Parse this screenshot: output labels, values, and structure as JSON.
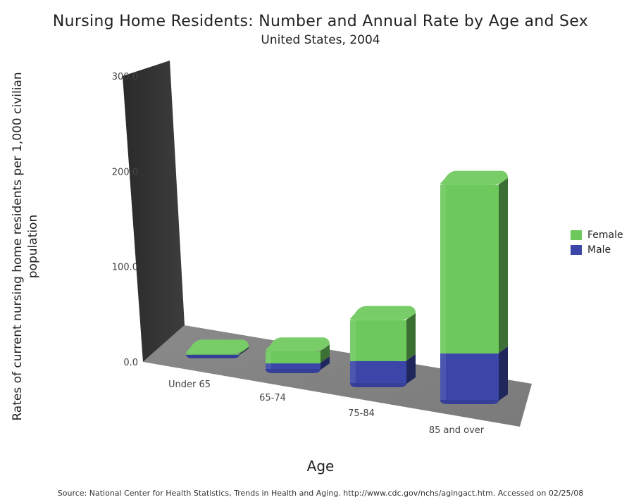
{
  "chart_data": {
    "type": "bar",
    "stacked": true,
    "title": "Nursing Home Residents: Number and Annual Rate by Age and Sex",
    "subtitle": "United States, 2004",
    "xlabel": "Age",
    "ylabel": "Rates of current nursing home residents per 1,000 civilian population",
    "categories": [
      "Under 65",
      "65-74",
      "75-84",
      "85 and over"
    ],
    "series": [
      {
        "name": "Male",
        "color": "#3b46a8",
        "values": [
          0.9,
          7.3,
          24.5,
          50.2
        ]
      },
      {
        "name": "Female",
        "color": "#6dc95c",
        "values": [
          1.0,
          12.5,
          43.0,
          177.0
        ]
      }
    ],
    "ylim": [
      0,
      300
    ],
    "yticks": [
      "0.0",
      "100.0",
      "200.0",
      "300.0"
    ],
    "ytick_values": [
      0,
      100,
      200,
      300
    ],
    "legend_position": "right",
    "grid": false
  },
  "source": "Source: National Center for Health Statistics, Trends in Health and Aging. http://www.cdc.gov/nchs/agingact.htm. Accessed on 02/25/08"
}
